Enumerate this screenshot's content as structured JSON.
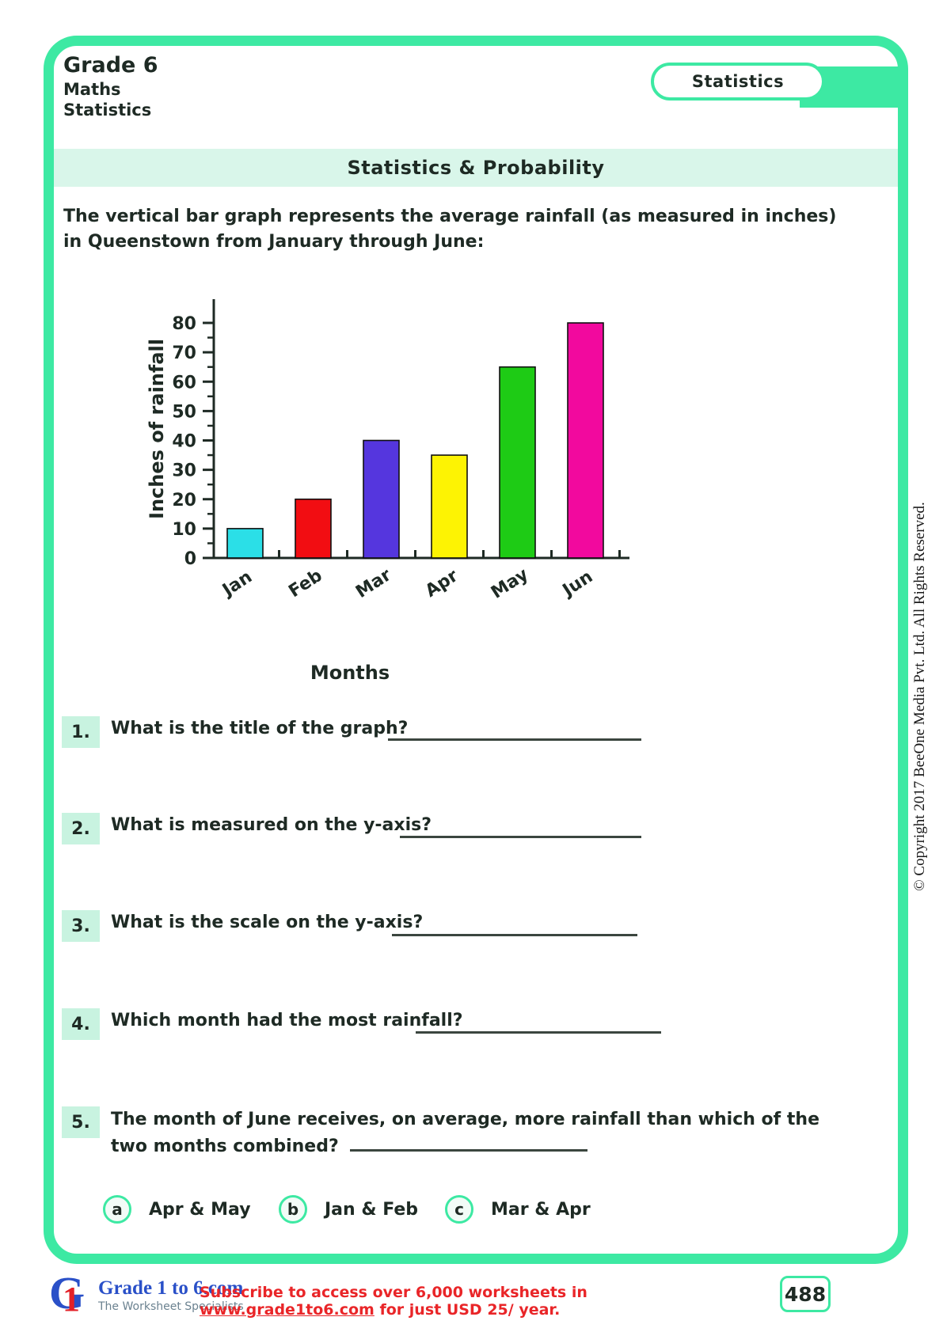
{
  "header": {
    "grade": "Grade 6",
    "subject": "Maths",
    "topic": "Statistics",
    "tab_label": "Statistics",
    "banner_title": "Statistics & Probability"
  },
  "intro": {
    "text": "The vertical bar graph represents the average rainfall (as measured in inches) in Queenstown from January through June:"
  },
  "chart_data": {
    "type": "bar",
    "categories": [
      "Jan",
      "Feb",
      "Mar",
      "Apr",
      "May",
      "Jun"
    ],
    "values": [
      10,
      20,
      40,
      35,
      65,
      80
    ],
    "colors": [
      "#2bdfe7",
      "#f20d12",
      "#5536de",
      "#fdf303",
      "#1ecb15",
      "#f2099e"
    ],
    "title": "",
    "xlabel": "Months",
    "ylabel": "Inches of rainfall",
    "ylim": [
      0,
      80
    ],
    "ytick_step": 10,
    "grid": false,
    "legend": false
  },
  "questions": [
    {
      "number": "1.",
      "text": "What is the title of the graph?"
    },
    {
      "number": "2.",
      "text": "What is measured on the y-axis?"
    },
    {
      "number": "3.",
      "text": "What is the scale on the y-axis?"
    },
    {
      "number": "4.",
      "text": "Which month had the most rainfall?"
    },
    {
      "number": "5.",
      "text": "The month of June receives, on average, more rainfall than which of the two months combined?"
    }
  ],
  "options": [
    {
      "letter": "a",
      "label": "Apr & May"
    },
    {
      "letter": "b",
      "label": "Jan & Feb"
    },
    {
      "letter": "c",
      "label": "Mar & Apr"
    }
  ],
  "footer": {
    "logo_title": "Grade 1 to 6.com",
    "logo_subtitle": "The Worksheet Specialists",
    "subscribe_prefix": "Subscribe to access over 6,000 worksheets in ",
    "subscribe_link": "www.grade1to6.com",
    "subscribe_suffix": " for just USD 25/ year.",
    "page_number": "488"
  },
  "sidebar": {
    "copyright": "© Copyright 2017 BeeOne Media Pvt. Ltd. All Rights Reserved."
  },
  "colors": {
    "theme_green": "#3de9a3",
    "banner_mint": "#d9f6ea",
    "badge_mint": "#c8f3e0",
    "footer_red": "#e92528",
    "logo_blue": "#2a50c8",
    "ink": "#1e2a24"
  }
}
